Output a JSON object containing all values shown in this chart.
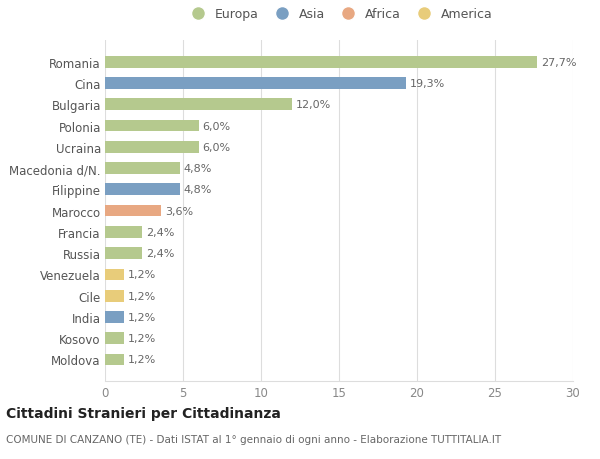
{
  "countries": [
    "Romania",
    "Cina",
    "Bulgaria",
    "Polonia",
    "Ucraina",
    "Macedonia d/N.",
    "Filippine",
    "Marocco",
    "Francia",
    "Russia",
    "Venezuela",
    "Cile",
    "India",
    "Kosovo",
    "Moldova"
  ],
  "values": [
    27.7,
    19.3,
    12.0,
    6.0,
    6.0,
    4.8,
    4.8,
    3.6,
    2.4,
    2.4,
    1.2,
    1.2,
    1.2,
    1.2,
    1.2
  ],
  "labels": [
    "27,7%",
    "19,3%",
    "12,0%",
    "6,0%",
    "6,0%",
    "4,8%",
    "4,8%",
    "3,6%",
    "2,4%",
    "2,4%",
    "1,2%",
    "1,2%",
    "1,2%",
    "1,2%",
    "1,2%"
  ],
  "colors": [
    "#b5c98e",
    "#7a9fc2",
    "#b5c98e",
    "#b5c98e",
    "#b5c98e",
    "#b5c98e",
    "#7a9fc2",
    "#e8a882",
    "#b5c98e",
    "#b5c98e",
    "#e8cc7a",
    "#e8cc7a",
    "#7a9fc2",
    "#b5c98e",
    "#b5c98e"
  ],
  "legend_labels": [
    "Europa",
    "Asia",
    "Africa",
    "America"
  ],
  "legend_colors": [
    "#b5c98e",
    "#7a9fc2",
    "#e8a882",
    "#e8cc7a"
  ],
  "title": "Cittadini Stranieri per Cittadinanza",
  "subtitle": "COMUNE DI CANZANO (TE) - Dati ISTAT al 1° gennaio di ogni anno - Elaborazione TUTTITALIA.IT",
  "xlim": [
    0,
    30
  ],
  "xticks": [
    0,
    5,
    10,
    15,
    20,
    25,
    30
  ],
  "bg_color": "#ffffff",
  "grid_color": "#dddddd",
  "bar_height": 0.55,
  "label_fontsize": 8,
  "tick_fontsize": 8.5,
  "title_fontsize": 10,
  "subtitle_fontsize": 7.5
}
